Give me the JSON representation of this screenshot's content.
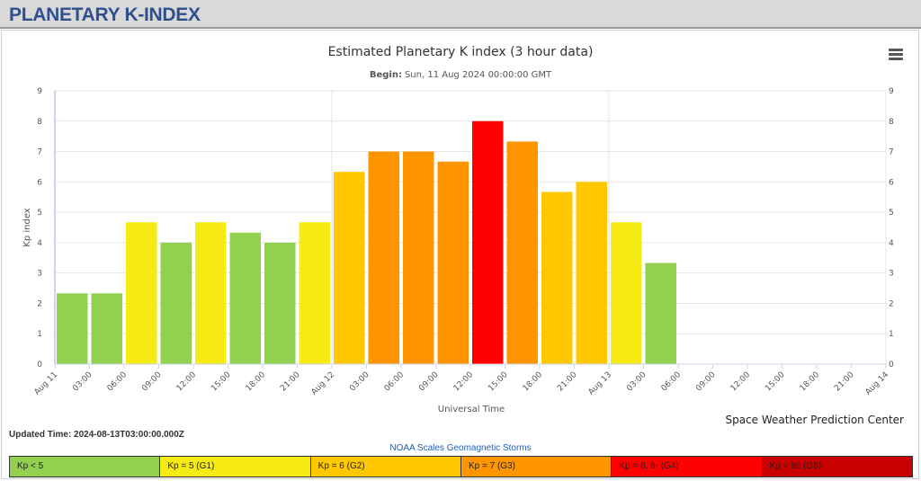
{
  "header": {
    "title": "PLANETARY K-INDEX"
  },
  "updated_text": "Updated Time: 2024-08-13T03:00:00.000Z",
  "scales_title": "NOAA Scales Geomagnetic Storms",
  "legend": [
    {
      "label": "Kp < 5",
      "color": "#92d050"
    },
    {
      "label": "Kp = 5 (G1)",
      "color": "#f6eb14"
    },
    {
      "label": "Kp = 6 (G2)",
      "color": "#ffc800"
    },
    {
      "label": "Kp = 7 (G3)",
      "color": "#ff9600"
    },
    {
      "label": "Kp = 8, 9- (G4)",
      "color": "#ff0000"
    },
    {
      "label": "Kp = 9o (G5)",
      "color": "#c80000"
    }
  ],
  "chart_data": {
    "type": "bar",
    "title": "Estimated Planetary K index (3 hour data)",
    "subtitle_label": "Begin:",
    "subtitle_value": "Sun, 11 Aug 2024 00:00:00 GMT",
    "xlabel": "Universal Time",
    "ylabel": "Kp index",
    "ylim": [
      0,
      9
    ],
    "yticks": [
      0,
      1,
      2,
      3,
      4,
      5,
      6,
      7,
      8,
      9
    ],
    "x_tick_labels": [
      "Aug 11",
      "03:00",
      "06:00",
      "09:00",
      "12:00",
      "15:00",
      "18:00",
      "21:00",
      "Aug 12",
      "03:00",
      "06:00",
      "09:00",
      "12:00",
      "15:00",
      "18:00",
      "21:00",
      "Aug 13",
      "03:00",
      "06:00",
      "09:00",
      "12:00",
      "15:00",
      "18:00",
      "21:00",
      "Aug 14"
    ],
    "values": [
      2.33,
      2.33,
      4.67,
      4.0,
      4.67,
      4.33,
      4.0,
      4.67,
      6.33,
      7.0,
      7.0,
      6.67,
      8.0,
      7.33,
      5.67,
      6.0,
      4.67,
      3.33
    ],
    "colors": {
      "below5": "#92d050",
      "g1": "#f6eb14",
      "g2": "#ffc800",
      "g3": "#ff9600",
      "g4": "#ff0000",
      "g5": "#c80000"
    },
    "grid": true,
    "legend": "none",
    "credit": "Space Weather Prediction Center"
  }
}
